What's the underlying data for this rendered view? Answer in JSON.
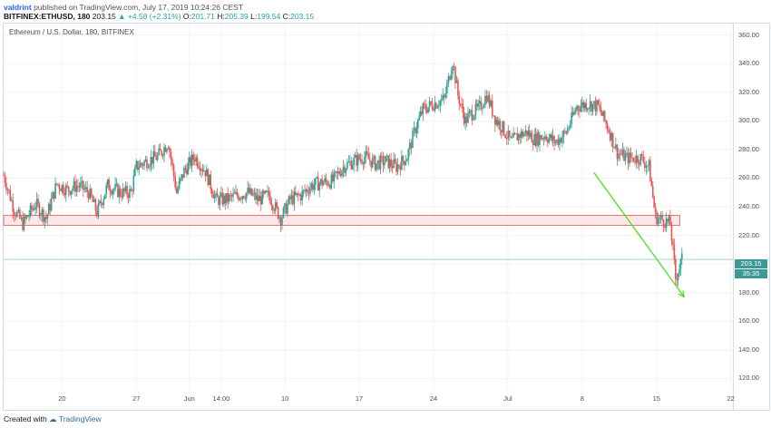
{
  "header": {
    "user": "valdrint",
    "published": "published on TradingView.com, July 17, 2019 10:24:26 CEST",
    "symbol": "BITFINEX:ETHUSD, 180",
    "last": "203.15",
    "change": "▲ +4.58 (+2.31%)",
    "o_label": "O:",
    "o_value": "201.71",
    "h_label": "H:",
    "h_value": "205.39",
    "l_label": "L:",
    "l_value": "199.54",
    "c_label": "C:",
    "c_value": "203.15"
  },
  "pair_label": "Ethereum / U.S. Dollar, 180, BITFINEX",
  "price_tag": "203.15",
  "timer_tag": "35:35",
  "footer": {
    "created_with": "Created with",
    "brand": "TradingView"
  },
  "colors": {
    "up": "#26a69a",
    "down": "#ef5350",
    "zone_fill": "#fbe3e3",
    "zone_stroke": "#ef5350",
    "trend": "#39e600",
    "price_line": "#3c9996"
  },
  "chart_data": {
    "type": "candlestick",
    "title": "Ethereum / U.S. Dollar, 180, BITFINEX",
    "ylim": [
      112,
      368
    ],
    "y_ticks": [
      "120.00",
      "140.00",
      "160.00",
      "180.00",
      "200.00",
      "220.00",
      "240.00",
      "260.00",
      "280.00",
      "300.00",
      "320.00",
      "340.00",
      "360.00"
    ],
    "x_ticks": [
      {
        "label": "20",
        "x": 20
      },
      {
        "label": "27",
        "x": 27
      },
      {
        "label": "Jun",
        "x": 32
      },
      {
        "label": "14:00",
        "x": 35
      },
      {
        "label": "10",
        "x": 41
      },
      {
        "label": "17",
        "x": 48
      },
      {
        "label": "24",
        "x": 55
      },
      {
        "label": "Jul",
        "x": 62
      },
      {
        "label": "8",
        "x": 69
      },
      {
        "label": "15",
        "x": 76
      },
      {
        "label": "22",
        "x": 83
      }
    ],
    "xlim": [
      14.5,
      83.2
    ],
    "close_path": [
      [
        14.5,
        262
      ],
      [
        15.5,
        238
      ],
      [
        16.3,
        228
      ],
      [
        17.5,
        242
      ],
      [
        18.5,
        232
      ],
      [
        19.5,
        256
      ],
      [
        20.5,
        252
      ],
      [
        21.5,
        255
      ],
      [
        22.5,
        250
      ],
      [
        23.3,
        236
      ],
      [
        24.3,
        255
      ],
      [
        25.5,
        250
      ],
      [
        26.5,
        250
      ],
      [
        27.0,
        268
      ],
      [
        28.0,
        272
      ],
      [
        29.0,
        275
      ],
      [
        30.0,
        285
      ],
      [
        30.8,
        250
      ],
      [
        31.5,
        265
      ],
      [
        32.5,
        275
      ],
      [
        33.5,
        265
      ],
      [
        34.5,
        245
      ],
      [
        35.5,
        245
      ],
      [
        36.5,
        248
      ],
      [
        37.5,
        250
      ],
      [
        38.5,
        245
      ],
      [
        39.5,
        248
      ],
      [
        40.6,
        232
      ],
      [
        41.5,
        245
      ],
      [
        42.5,
        248
      ],
      [
        43.5,
        255
      ],
      [
        44.5,
        257
      ],
      [
        45.5,
        258
      ],
      [
        46.5,
        268
      ],
      [
        47.5,
        272
      ],
      [
        48.5,
        275
      ],
      [
        49.5,
        270
      ],
      [
        50.5,
        272
      ],
      [
        51.5,
        268
      ],
      [
        52.5,
        275
      ],
      [
        53.3,
        295
      ],
      [
        54.0,
        308
      ],
      [
        55.0,
        312
      ],
      [
        56.0,
        315
      ],
      [
        56.8,
        342
      ],
      [
        57.3,
        318
      ],
      [
        58.0,
        300
      ],
      [
        58.5,
        305
      ],
      [
        59.2,
        308
      ],
      [
        60.0,
        318
      ],
      [
        60.8,
        302
      ],
      [
        61.5,
        295
      ],
      [
        62.3,
        285
      ],
      [
        63.0,
        290
      ],
      [
        63.8,
        292
      ],
      [
        64.5,
        287
      ],
      [
        65.5,
        290
      ],
      [
        66.5,
        285
      ],
      [
        67.5,
        292
      ],
      [
        68.5,
        310
      ],
      [
        69.5,
        312
      ],
      [
        70.5,
        310
      ],
      [
        71.5,
        294
      ],
      [
        72.3,
        278
      ],
      [
        73.2,
        274
      ],
      [
        74.5,
        274
      ],
      [
        75.3,
        268
      ],
      [
        75.9,
        233
      ],
      [
        76.8,
        230
      ],
      [
        77.3,
        228
      ],
      [
        77.8,
        190
      ],
      [
        78.4,
        203
      ]
    ],
    "support_zone": {
      "x0": 14.5,
      "x1": 78.2,
      "y0": 227,
      "y1": 234
    },
    "current_price": 203.15,
    "trend_line": [
      [
        70.1,
        264
      ],
      [
        78.6,
        177
      ]
    ],
    "annotations": [
      "support zone",
      "downtrend arrow"
    ]
  }
}
